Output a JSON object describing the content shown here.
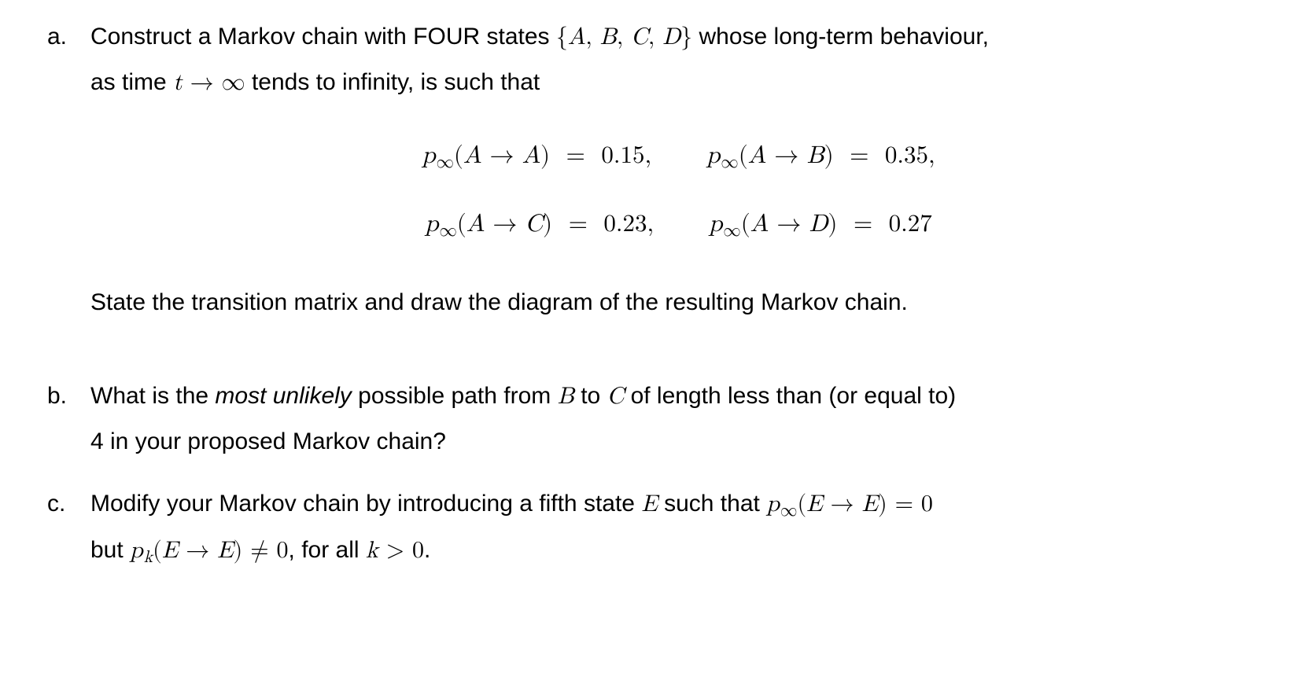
{
  "problem": {
    "a": {
      "label": "a.",
      "line1_pre": "Construct a Markov chain with FOUR states ",
      "line1_set": "{A, B, C, D}",
      "line1_post": " whose long-term behaviour,",
      "line2_pre": "as time ",
      "line2_math": "t → ∞",
      "line2_post": " tends to infinity, is such that",
      "eqs": {
        "r1c1_lhs": "p",
        "r1c1_sub": "∞",
        "r1c1_arg": "(A → A)",
        "r1c1_eq": "  =  ",
        "r1c1_rhs": "0.15,",
        "r1c2_lhs": "p",
        "r1c2_sub": "∞",
        "r1c2_arg": "(A → B)",
        "r1c2_eq": "  =  ",
        "r1c2_rhs": "0.35,",
        "r2c1_lhs": "p",
        "r2c1_sub": "∞",
        "r2c1_arg": "(A → C)",
        "r2c1_eq": "  =  ",
        "r2c1_rhs": "0.23,",
        "r2c2_lhs": "p",
        "r2c2_sub": "∞",
        "r2c2_arg": "(A → D)",
        "r2c2_eq": "  =  ",
        "r2c2_rhs": "0.27"
      },
      "closing": "State the transition matrix and draw the diagram of the resulting Markov chain."
    },
    "b": {
      "label": "b.",
      "pre1": "What is the ",
      "emph": "most unlikely",
      "post1": " possible path from ",
      "mathB": "B",
      "mid1": " to ",
      "mathC": "C",
      "post2": " of length less than (or equal to)",
      "line2": "4 in your proposed Markov chain?"
    },
    "c": {
      "label": "c.",
      "pre": "Modify your Markov chain by introducing a fifth state ",
      "mathE1": "E",
      "mid": " such that ",
      "eq1_p": "p",
      "eq1_sub": "∞",
      "eq1_arg": "(E → E) = 0",
      "line2_pre": "but ",
      "eq2_p": "p",
      "eq2_sub": "k",
      "eq2_arg": "(E → E) ≠ 0",
      "line2_mid": ", for all ",
      "eq3": "k > 0",
      "line2_post": "."
    }
  }
}
